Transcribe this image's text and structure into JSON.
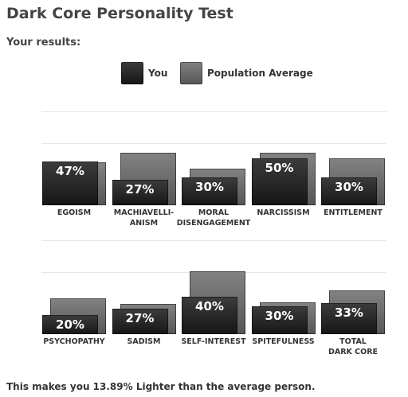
{
  "title": "Dark Core Personality Test",
  "subtitle": "Your results:",
  "footer": "This makes you 13.89% Lighter than the average person.",
  "chart_data": [
    {
      "type": "bar",
      "categories": [
        "EGOISM",
        "MACHIAVELLI-\nANISM",
        "MORAL\nDISENGAGEMENT",
        "NARCISSISM",
        "ENTITLEMENT"
      ],
      "ylim": [
        0,
        100
      ],
      "series": [
        {
          "name": "You",
          "color": "#1c1c1c",
          "values": [
            47,
            27,
            30,
            50,
            30
          ],
          "value_labels": [
            "47%",
            "27%",
            "30%",
            "50%",
            "30%"
          ]
        },
        {
          "name": "Population Average",
          "color": "#6e6e6e",
          "values": [
            46,
            56,
            39,
            56,
            50
          ]
        }
      ]
    },
    {
      "type": "bar",
      "categories": [
        "PSYCHOPATHY",
        "SADISM",
        "SELF-INTEREST",
        "SPITEFULNESS",
        "TOTAL\nDARK CORE"
      ],
      "ylim": [
        0,
        100
      ],
      "series": [
        {
          "name": "You",
          "color": "#1c1c1c",
          "values": [
            20,
            27,
            40,
            30,
            33
          ],
          "value_labels": [
            "20%",
            "27%",
            "40%",
            "30%",
            "33%"
          ]
        },
        {
          "name": "Population Average",
          "color": "#6e6e6e",
          "values": [
            38,
            32,
            67,
            34,
            47
          ]
        }
      ]
    }
  ]
}
